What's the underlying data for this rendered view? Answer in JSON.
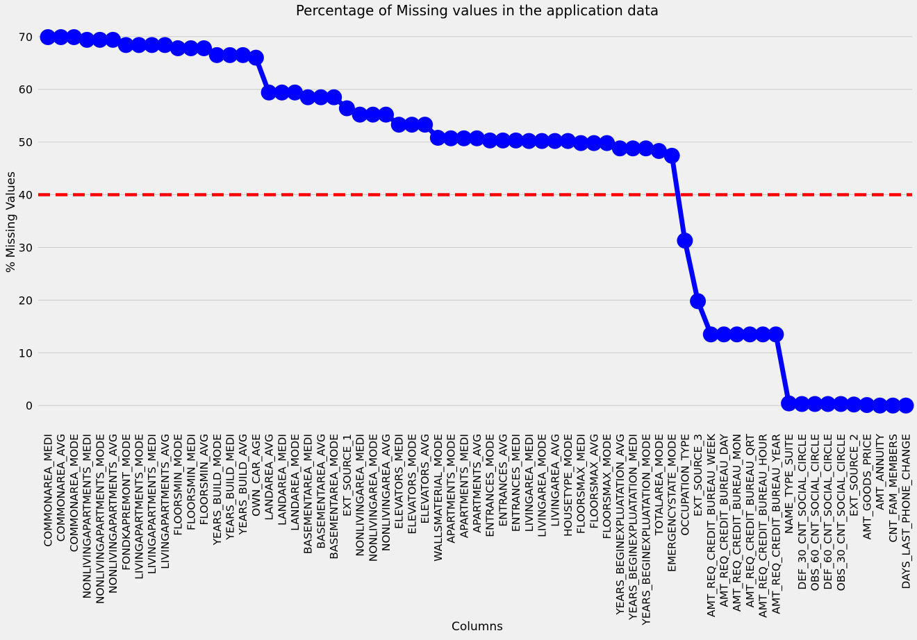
{
  "chart_data": {
    "type": "line",
    "title": "Percentage of Missing values in the application data",
    "xlabel": "Columns",
    "ylabel": "% Missing Values",
    "ylim": [
      -3,
      73
    ],
    "yticks": [
      0,
      10,
      20,
      30,
      40,
      50,
      60,
      70
    ],
    "grid": "horizontal",
    "categories": [
      "COMMONAREA_MEDI",
      "COMMONAREA_AVG",
      "COMMONAREA_MODE",
      "NONLIVINGAPARTMENTS_MEDI",
      "NONLIVINGAPARTMENTS_MODE",
      "NONLIVINGAPARTMENTS_AVG",
      "FONDKAPREMONT_MODE",
      "LIVINGAPARTMENTS_MODE",
      "LIVINGAPARTMENTS_MEDI",
      "LIVINGAPARTMENTS_AVG",
      "FLOORSMIN_MODE",
      "FLOORSMIN_MEDI",
      "FLOORSMIN_AVG",
      "YEARS_BUILD_MODE",
      "YEARS_BUILD_MEDI",
      "YEARS_BUILD_AVG",
      "OWN_CAR_AGE",
      "LANDAREA_AVG",
      "LANDAREA_MEDI",
      "LANDAREA_MODE",
      "BASEMENTAREA_MEDI",
      "BASEMENTAREA_AVG",
      "BASEMENTAREA_MODE",
      "EXT_SOURCE_1",
      "NONLIVINGAREA_MEDI",
      "NONLIVINGAREA_MODE",
      "NONLIVINGAREA_AVG",
      "ELEVATORS_MEDI",
      "ELEVATORS_MODE",
      "ELEVATORS_AVG",
      "WALLSMATERIAL_MODE",
      "APARTMENTS_MODE",
      "APARTMENTS_MEDI",
      "APARTMENTS_AVG",
      "ENTRANCES_MODE",
      "ENTRANCES_AVG",
      "ENTRANCES_MEDI",
      "LIVINGAREA_MEDI",
      "LIVINGAREA_MODE",
      "LIVINGAREA_AVG",
      "HOUSETYPE_MODE",
      "FLOORSMAX_MEDI",
      "FLOORSMAX_AVG",
      "FLOORSMAX_MODE",
      "YEARS_BEGINEXPLUATATION_AVG",
      "YEARS_BEGINEXPLUATATION_MEDI",
      "YEARS_BEGINEXPLUATATION_MODE",
      "TOTALAREA_MODE",
      "EMERGENCYSTATE_MODE",
      "OCCUPATION_TYPE",
      "EXT_SOURCE_3",
      "AMT_REQ_CREDIT_BUREAU_WEEK",
      "AMT_REQ_CREDIT_BUREAU_DAY",
      "AMT_REQ_CREDIT_BUREAU_MON",
      "AMT_REQ_CREDIT_BUREAU_QRT",
      "AMT_REQ_CREDIT_BUREAU_HOUR",
      "AMT_REQ_CREDIT_BUREAU_YEAR",
      "NAME_TYPE_SUITE",
      "DEF_30_CNT_SOCIAL_CIRCLE",
      "OBS_60_CNT_SOCIAL_CIRCLE",
      "DEF_60_CNT_SOCIAL_CIRCLE",
      "OBS_30_CNT_SOCIAL_CIRCLE",
      "EXT_SOURCE_2",
      "AMT_GOODS_PRICE",
      "AMT_ANNUITY",
      "CNT_FAM_MEMBERS",
      "DAYS_LAST_PHONE_CHANGE"
    ],
    "series": [
      {
        "values": [
          69.9,
          69.9,
          69.9,
          69.4,
          69.4,
          69.4,
          68.4,
          68.4,
          68.4,
          68.4,
          67.8,
          67.8,
          67.8,
          66.5,
          66.5,
          66.5,
          66.0,
          59.4,
          59.4,
          59.4,
          58.5,
          58.5,
          58.5,
          56.4,
          55.2,
          55.2,
          55.2,
          53.3,
          53.3,
          53.3,
          50.8,
          50.7,
          50.7,
          50.7,
          50.3,
          50.3,
          50.3,
          50.2,
          50.2,
          50.2,
          50.2,
          49.8,
          49.8,
          49.8,
          48.8,
          48.8,
          48.8,
          48.3,
          47.4,
          31.3,
          19.8,
          13.5,
          13.5,
          13.5,
          13.5,
          13.5,
          13.5,
          0.4,
          0.3,
          0.3,
          0.3,
          0.3,
          0.2,
          0.1,
          0.0,
          0.0,
          0.0
        ],
        "color": "#0000ff"
      }
    ],
    "reference_line": {
      "y": 40,
      "color": "#ff0000",
      "style": "dashed"
    },
    "colors": {
      "background": "#f0f0f0",
      "grid": "#cbcbcb",
      "line": "#0000ff",
      "threshold": "#ff0000"
    }
  }
}
